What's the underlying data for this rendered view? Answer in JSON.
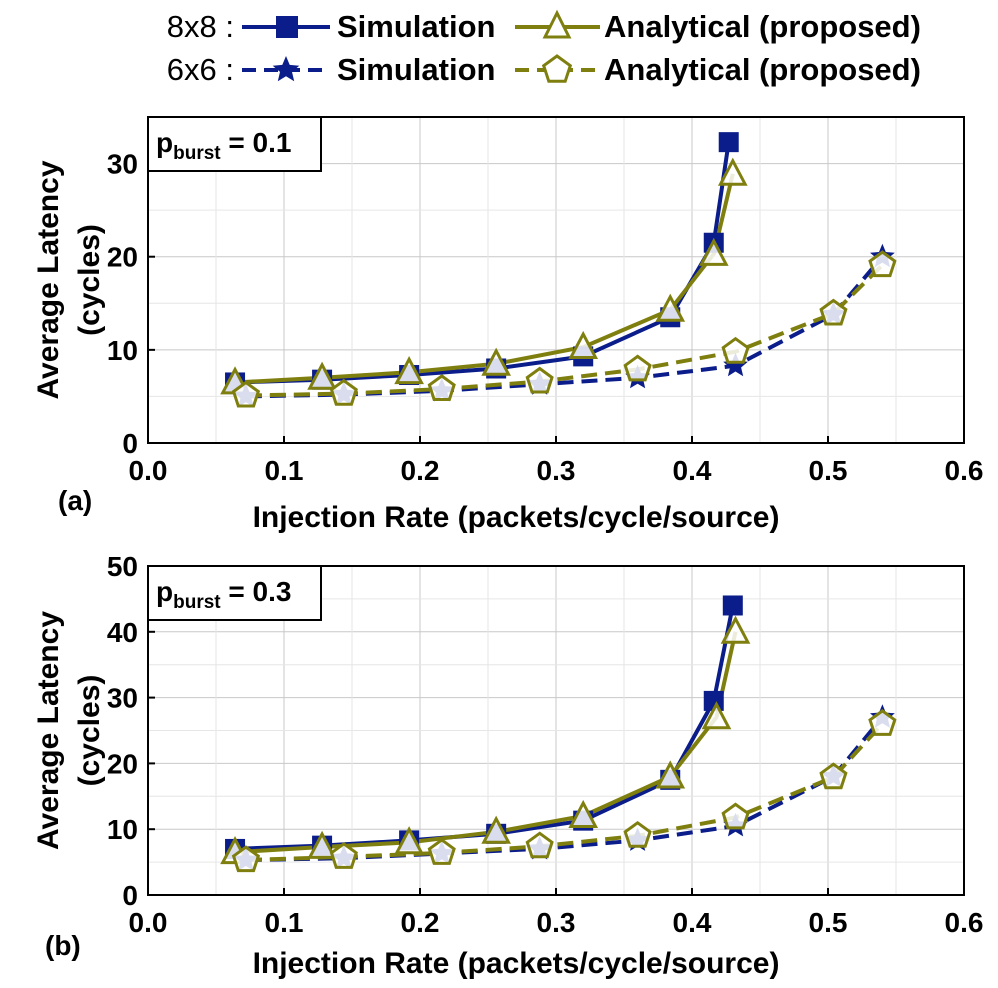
{
  "legend": {
    "rows": [
      {
        "label": "8x8 :",
        "sim_label": "Simulation",
        "ana_label": "Analytical (proposed)"
      },
      {
        "label": "6x6 :",
        "sim_label": "Simulation",
        "ana_label": "Analytical (proposed)"
      }
    ]
  },
  "colors": {
    "simulation": "#0b1d8a",
    "analytical": "#7f7f10",
    "grid": "#c8c8c8"
  },
  "chart_data": [
    {
      "type": "line",
      "panel_label": "(a)",
      "annotation": {
        "main": "p",
        "sub": "burst",
        "rest": " = 0.1"
      },
      "xlabel": "Injection Rate (packets/cycle/source)",
      "ylabel_lines": [
        "Average Latency",
        "(cycles)"
      ],
      "xlim": [
        0,
        0.6
      ],
      "ylim": [
        0,
        35
      ],
      "xticks": [
        0,
        0.1,
        0.2,
        0.3,
        0.4,
        0.5,
        0.6
      ],
      "xtick_labels": [
        "0.0",
        "0.1",
        "0.2",
        "0.3",
        "0.4",
        "0.5",
        "0.6"
      ],
      "yticks": [
        0,
        10,
        20,
        30
      ],
      "ytick_labels": [
        "0",
        "10",
        "20",
        "30"
      ],
      "series": [
        {
          "name": "8x8 Simulation",
          "marker": "square",
          "dash": false,
          "color": "simulation",
          "x": [
            0.064,
            0.128,
            0.192,
            0.256,
            0.32,
            0.384,
            0.416,
            0.427
          ],
          "y": [
            6.5,
            6.8,
            7.3,
            8.0,
            9.3,
            13.5,
            21.5,
            32.3
          ]
        },
        {
          "name": "8x8 Analytical (proposed)",
          "marker": "triangle",
          "dash": false,
          "color": "analytical",
          "x": [
            0.064,
            0.128,
            0.192,
            0.256,
            0.32,
            0.384,
            0.416,
            0.43
          ],
          "y": [
            6.5,
            7.0,
            7.6,
            8.5,
            10.3,
            14.3,
            20.3,
            28.9
          ]
        },
        {
          "name": "6x6 Simulation",
          "marker": "star",
          "dash": true,
          "color": "simulation",
          "x": [
            0.072,
            0.144,
            0.216,
            0.288,
            0.36,
            0.432,
            0.504,
            0.54
          ],
          "y": [
            5.0,
            5.2,
            5.6,
            6.3,
            7.0,
            8.3,
            13.8,
            20.0
          ]
        },
        {
          "name": "6x6 Analytical (proposed)",
          "marker": "pentagon",
          "dash": true,
          "color": "analytical",
          "x": [
            0.072,
            0.144,
            0.216,
            0.288,
            0.36,
            0.432,
            0.504,
            0.54
          ],
          "y": [
            5.1,
            5.3,
            5.8,
            6.6,
            7.9,
            9.8,
            13.9,
            19.1
          ]
        }
      ]
    },
    {
      "type": "line",
      "panel_label": "(b)",
      "annotation": {
        "main": "p",
        "sub": "burst",
        "rest": " = 0.3"
      },
      "xlabel": "Injection Rate (packets/cycle/source)",
      "ylabel_lines": [
        "Average Latency",
        "(cycles)"
      ],
      "xlim": [
        0,
        0.6
      ],
      "ylim": [
        0,
        50
      ],
      "xticks": [
        0,
        0.1,
        0.2,
        0.3,
        0.4,
        0.5,
        0.6
      ],
      "xtick_labels": [
        "0.0",
        "0.1",
        "0.2",
        "0.3",
        "0.4",
        "0.5",
        "0.6"
      ],
      "yticks": [
        0,
        10,
        20,
        30,
        40,
        50
      ],
      "ytick_labels": [
        "0",
        "10",
        "20",
        "30",
        "40",
        "50"
      ],
      "series": [
        {
          "name": "8x8 Simulation",
          "marker": "square",
          "dash": false,
          "color": "simulation",
          "x": [
            0.064,
            0.128,
            0.192,
            0.256,
            0.32,
            0.384,
            0.416,
            0.43
          ],
          "y": [
            7.0,
            7.5,
            8.3,
            9.3,
            11.3,
            17.5,
            29.5,
            44.0
          ]
        },
        {
          "name": "8x8 Analytical (proposed)",
          "marker": "triangle",
          "dash": false,
          "color": "analytical",
          "x": [
            0.064,
            0.128,
            0.192,
            0.256,
            0.32,
            0.384,
            0.418,
            0.432
          ],
          "y": [
            6.5,
            7.3,
            8.0,
            9.6,
            12.0,
            18.0,
            27.0,
            40.0
          ]
        },
        {
          "name": "6x6 Simulation",
          "marker": "star",
          "dash": true,
          "color": "simulation",
          "x": [
            0.072,
            0.144,
            0.216,
            0.288,
            0.36,
            0.432,
            0.504,
            0.54
          ],
          "y": [
            5.3,
            5.6,
            6.3,
            7.0,
            8.3,
            10.5,
            18.0,
            27.0
          ]
        },
        {
          "name": "6x6 Analytical (proposed)",
          "marker": "pentagon",
          "dash": true,
          "color": "analytical",
          "x": [
            0.072,
            0.144,
            0.216,
            0.288,
            0.36,
            0.432,
            0.504,
            0.54
          ],
          "y": [
            5.3,
            5.8,
            6.4,
            7.4,
            9.0,
            11.8,
            17.9,
            26.0
          ]
        }
      ]
    }
  ]
}
